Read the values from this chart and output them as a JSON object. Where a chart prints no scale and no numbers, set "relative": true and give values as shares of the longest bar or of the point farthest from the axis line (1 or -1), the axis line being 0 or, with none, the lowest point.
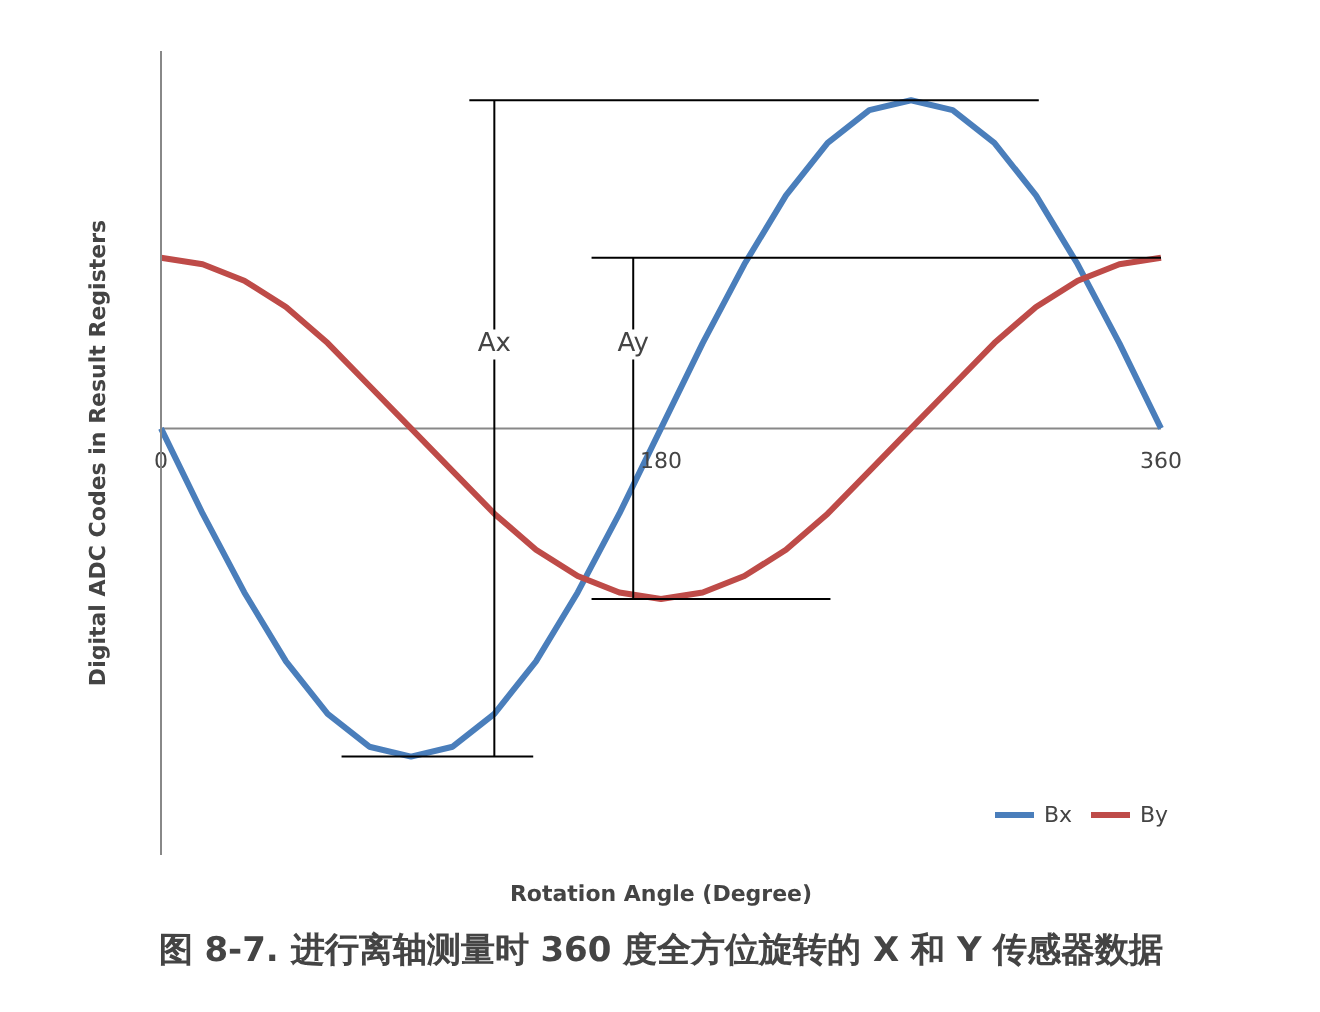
{
  "chart_data": {
    "type": "line",
    "relative": true,
    "ylabel": "Digital ADC Codes in Result Registers",
    "x": [
      0,
      15,
      30,
      45,
      60,
      75,
      90,
      105,
      120,
      135,
      150,
      165,
      180,
      195,
      210,
      225,
      240,
      255,
      270,
      285,
      300,
      315,
      330,
      345,
      360
    ],
    "xlim": [
      0,
      360
    ],
    "xticks": [
      0,
      180,
      360
    ],
    "tick_labels": "x",
    "legend": "bottom right",
    "grid": false,
    "marker": "none",
    "line_style": "solid",
    "series": [
      {
        "name": "Bx",
        "color": "#4a7ebb",
        "values": [
          0,
          -0.26,
          -0.5,
          -0.71,
          -0.87,
          -0.97,
          -1,
          -0.97,
          -0.87,
          -0.71,
          -0.5,
          -0.26,
          0,
          0.26,
          0.5,
          0.71,
          0.87,
          0.97,
          1,
          0.97,
          0.87,
          0.71,
          0.5,
          0.26,
          0
        ]
      },
      {
        "name": "By",
        "color": "#be4b48",
        "values": [
          0.52,
          0.5,
          0.45,
          0.37,
          0.26,
          0.13,
          0,
          -0.13,
          -0.26,
          -0.37,
          -0.45,
          -0.5,
          -0.52,
          -0.5,
          -0.45,
          -0.37,
          -0.26,
          -0.13,
          0,
          0.13,
          0.26,
          0.37,
          0.45,
          0.5,
          0.52
        ]
      },
      {
        "color": "#000000",
        "x": [
          120,
          120
        ],
        "values": [
          1,
          -1
        ]
      },
      {
        "color": "#000000",
        "x": [
          111,
          316
        ],
        "values": [
          1,
          1
        ]
      },
      {
        "color": "#000000",
        "x": [
          65,
          134
        ],
        "values": [
          -1,
          -1
        ]
      },
      {
        "color": "#000000",
        "x": [
          170,
          170
        ],
        "values": [
          0.52,
          -0.52
        ]
      },
      {
        "color": "#000000",
        "x": [
          155,
          360
        ],
        "values": [
          0.52,
          0.52
        ]
      },
      {
        "color": "#000000",
        "x": [
          155,
          241
        ],
        "values": [
          -0.52,
          -0.52
        ]
      }
    ],
    "annotations": [
      {
        "text": "Ax",
        "x": 120,
        "y": 0.21
      },
      {
        "text": "Ay",
        "x": 170,
        "y": 0.21
      },
      "Rotation Angle (Degree)",
      "图 8-7. 进行离轴测量时 360 度全方位旋转的 X 和 Y 传感器数据"
    ]
  }
}
